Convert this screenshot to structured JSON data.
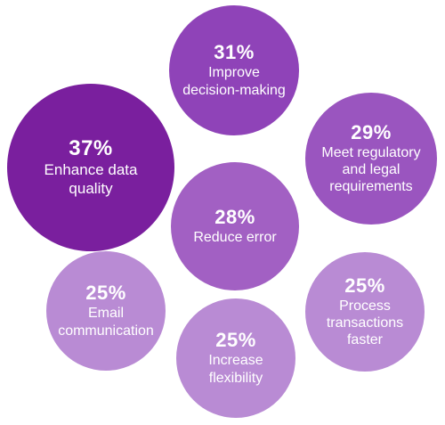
{
  "chart_data": {
    "type": "bubble",
    "unit": "%",
    "colors": {
      "darkest": "#7a1f9e",
      "dark": "#8f43b8",
      "medium": "#a260c3",
      "light": "#b98bd4"
    },
    "bubbles": [
      {
        "id": "decision",
        "value": 31,
        "display": "31%",
        "label": "Improve\ndecision-making",
        "color": "#8f43b8"
      },
      {
        "id": "quality",
        "value": 37,
        "display": "37%",
        "label": "Enhance data\nquality",
        "color": "#7a1f9e"
      },
      {
        "id": "regulatory",
        "value": 29,
        "display": "29%",
        "label": "Meet regulatory\nand legal\nrequirements",
        "color": "#9a55bf"
      },
      {
        "id": "error",
        "value": 28,
        "display": "28%",
        "label": "Reduce error",
        "color": "#a260c3"
      },
      {
        "id": "email",
        "value": 25,
        "display": "25%",
        "label": "Email\ncommunication",
        "color": "#b98bd4"
      },
      {
        "id": "process",
        "value": 25,
        "display": "25%",
        "label": "Process\ntransactions\nfaster",
        "color": "#b98bd4"
      },
      {
        "id": "flex",
        "value": 25,
        "display": "25%",
        "label": "Increase\nflexibility",
        "color": "#b98bd4"
      }
    ]
  }
}
